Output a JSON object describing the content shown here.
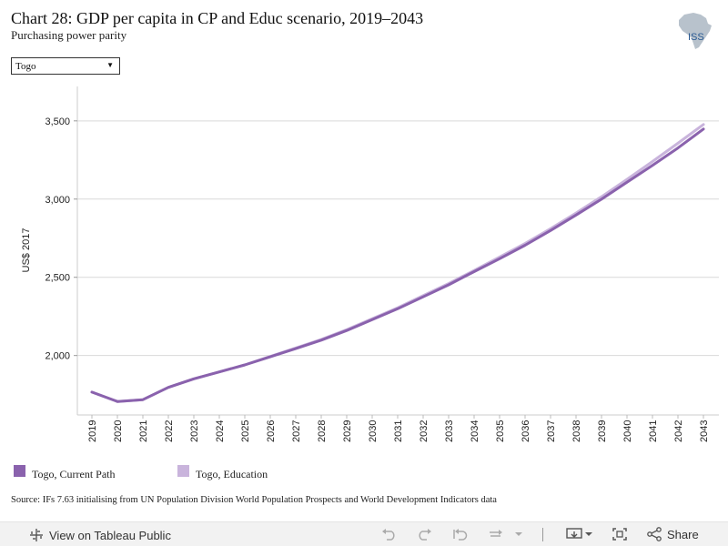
{
  "header": {
    "title": "Chart 28: GDP per capita in CP and Educ scenario, 2019–2043",
    "subtitle": "Purchasing power parity",
    "logo_text": "ISS"
  },
  "filter": {
    "selected": "Togo"
  },
  "chart_data": {
    "type": "line",
    "ylabel": "US$ 2017",
    "ylim": [
      1620,
      3720
    ],
    "yticks": [
      2000,
      2500,
      3000,
      3500
    ],
    "ytick_labels": [
      "2,000",
      "2,500",
      "3,000",
      "3,500"
    ],
    "x": [
      "2019",
      "2020",
      "2021",
      "2022",
      "2023",
      "2024",
      "2025",
      "2026",
      "2027",
      "2028",
      "2029",
      "2030",
      "2031",
      "2032",
      "2033",
      "2034",
      "2035",
      "2036",
      "2037",
      "2038",
      "2039",
      "2040",
      "2041",
      "2042",
      "2043"
    ],
    "series": [
      {
        "name": "Togo, Education",
        "color": "#c9b4dc",
        "values": [
          1766,
          1706,
          1718,
          1796,
          1851,
          1895,
          1940,
          1994,
          2048,
          2103,
          2165,
          2235,
          2305,
          2383,
          2460,
          2544,
          2629,
          2716,
          2811,
          2911,
          3015,
          3126,
          3240,
          3357,
          3477
        ]
      },
      {
        "name": "Togo, Current Path",
        "color": "#8a62ad",
        "values": [
          1766,
          1706,
          1718,
          1796,
          1851,
          1895,
          1940,
          1992,
          2044,
          2098,
          2160,
          2229,
          2299,
          2375,
          2452,
          2536,
          2619,
          2705,
          2799,
          2898,
          2999,
          3108,
          3215,
          3327,
          3448
        ]
      }
    ],
    "grid": true,
    "legend": "bottom-left"
  },
  "source": "Source: IFs 7.63 initialising from UN Population Division World Population Prospects and World Development Indicators data",
  "toolbar": {
    "view_label": "View on Tableau Public",
    "share_label": "Share"
  }
}
